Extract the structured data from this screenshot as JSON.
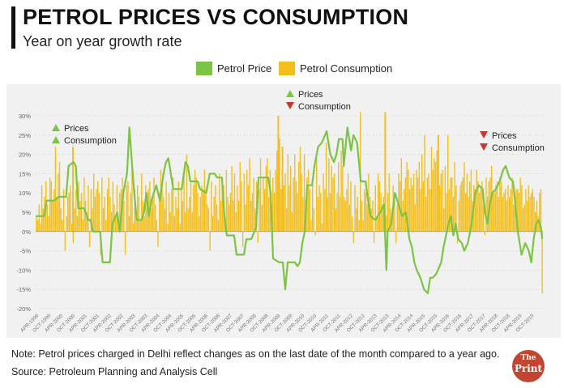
{
  "header": {
    "title": "PETROL PRICES VS CONSUMPTION",
    "subtitle": "Year on year growth rate"
  },
  "footer": {
    "note": "Note: Petrol prices charged in Delhi reflect changes as on the last date of the month compared to a year ago.",
    "source": "Source: Petroleum Planning and Analysis Cell",
    "logo_line1": "The",
    "logo_line2": "Print"
  },
  "chart_data": {
    "type": "bar",
    "title": "PETROL PRICES VS CONSUMPTION",
    "subtitle": "Year on year growth rate",
    "ylim": [
      -20,
      30
    ],
    "yticks": [
      "30%",
      "25%",
      "20%",
      "15%",
      "10%",
      "5%",
      "0%",
      "-5%",
      "-10%",
      "-15%",
      "-20%"
    ],
    "xticks": [
      "APR-1999",
      "OCT-1999",
      "APR-2000",
      "OCT-2000",
      "APR-2001",
      "OCT-2001",
      "APR-2002",
      "OCT-2002",
      "APR-2003",
      "OCT-2003",
      "APR-2004",
      "OCT-2004",
      "APR-2005",
      "OCT-2005",
      "APR-2006",
      "OCT-2006",
      "APR-2007",
      "OCT-2007",
      "APR-2008",
      "OCT-2008",
      "APR-2009",
      "OCT-2009",
      "APR-2010",
      "OCT-2010",
      "APR-2011",
      "OCT-2011",
      "APR-2012",
      "OCT-2012",
      "APR-2013",
      "OCT-2013",
      "APR-2014",
      "OCT-2014",
      "APR-2015",
      "OCT-2015",
      "APR-2016",
      "OCT-2016",
      "APR-2017",
      "OCT-2017",
      "APR-2018",
      "OCT-2018",
      "APR-2019",
      "OCT-2019"
    ],
    "grid": true,
    "legend_position": "top",
    "series": [
      {
        "name": "Petrol Price",
        "type": "line",
        "color": "#7cc444",
        "points": [
          [
            1999.25,
            4
          ],
          [
            1999.6,
            4
          ],
          [
            1999.7,
            8
          ],
          [
            2000.0,
            8
          ],
          [
            2000.2,
            9
          ],
          [
            2000.5,
            9
          ],
          [
            2000.6,
            17
          ],
          [
            2000.8,
            18
          ],
          [
            2000.9,
            17
          ],
          [
            2001.0,
            6
          ],
          [
            2001.25,
            6
          ],
          [
            2001.4,
            3
          ],
          [
            2001.5,
            3
          ],
          [
            2001.6,
            0
          ],
          [
            2001.9,
            0
          ],
          [
            2002.0,
            -8
          ],
          [
            2002.3,
            -8
          ],
          [
            2002.4,
            2
          ],
          [
            2002.6,
            5
          ],
          [
            2002.7,
            0
          ],
          [
            2002.85,
            10
          ],
          [
            2003.0,
            15
          ],
          [
            2003.1,
            27
          ],
          [
            2003.2,
            18
          ],
          [
            2003.3,
            10
          ],
          [
            2003.4,
            3
          ],
          [
            2003.6,
            3
          ],
          [
            2003.7,
            5
          ],
          [
            2003.8,
            10
          ],
          [
            2003.9,
            4
          ],
          [
            2004.0,
            8
          ],
          [
            2004.2,
            12
          ],
          [
            2004.35,
            8
          ],
          [
            2004.5,
            15
          ],
          [
            2004.6,
            18
          ],
          [
            2004.7,
            19
          ],
          [
            2004.8,
            15
          ],
          [
            2004.9,
            11
          ],
          [
            2005.25,
            11
          ],
          [
            2005.4,
            18
          ],
          [
            2005.5,
            17
          ],
          [
            2005.6,
            13
          ],
          [
            2005.9,
            13
          ],
          [
            2006.0,
            11
          ],
          [
            2006.25,
            10
          ],
          [
            2006.4,
            15
          ],
          [
            2006.6,
            15
          ],
          [
            2006.7,
            14
          ],
          [
            2006.9,
            14
          ],
          [
            2007.0,
            4
          ],
          [
            2007.1,
            -1
          ],
          [
            2007.4,
            -1
          ],
          [
            2007.5,
            -6
          ],
          [
            2007.8,
            -6
          ],
          [
            2007.9,
            -2
          ],
          [
            2008.1,
            -2
          ],
          [
            2008.3,
            1
          ],
          [
            2008.4,
            14
          ],
          [
            2008.8,
            14
          ],
          [
            2008.9,
            10
          ],
          [
            2009.0,
            -7
          ],
          [
            2009.25,
            -8
          ],
          [
            2009.4,
            -8
          ],
          [
            2009.5,
            -15
          ],
          [
            2009.6,
            -8
          ],
          [
            2009.9,
            -8
          ],
          [
            2010.0,
            -9
          ],
          [
            2010.1,
            -8
          ],
          [
            2010.2,
            -3
          ],
          [
            2010.3,
            0
          ],
          [
            2010.4,
            12
          ],
          [
            2010.6,
            12
          ],
          [
            2010.7,
            17
          ],
          [
            2010.85,
            22
          ],
          [
            2011.0,
            23
          ],
          [
            2011.2,
            26
          ],
          [
            2011.35,
            20
          ],
          [
            2011.5,
            18
          ],
          [
            2011.6,
            20
          ],
          [
            2011.7,
            24
          ],
          [
            2011.85,
            24
          ],
          [
            2011.9,
            17
          ],
          [
            2012.05,
            27
          ],
          [
            2012.2,
            21
          ],
          [
            2012.3,
            25
          ],
          [
            2012.45,
            23
          ],
          [
            2012.6,
            13
          ],
          [
            2012.8,
            13
          ],
          [
            2012.9,
            8
          ],
          [
            2013.0,
            4
          ],
          [
            2013.2,
            3
          ],
          [
            2013.4,
            5
          ],
          [
            2013.55,
            7
          ],
          [
            2013.65,
            -10
          ],
          [
            2013.7,
            0
          ],
          [
            2013.85,
            2
          ],
          [
            2014.0,
            10
          ],
          [
            2014.1,
            8
          ],
          [
            2014.3,
            4
          ],
          [
            2014.45,
            5
          ],
          [
            2014.6,
            -2
          ],
          [
            2014.7,
            -4
          ],
          [
            2014.8,
            -8
          ],
          [
            2014.9,
            -10
          ],
          [
            2015.05,
            -12
          ],
          [
            2015.2,
            -15
          ],
          [
            2015.35,
            -16
          ],
          [
            2015.45,
            -12
          ],
          [
            2015.55,
            -12
          ],
          [
            2015.7,
            -11
          ],
          [
            2015.9,
            -8
          ],
          [
            2016.0,
            -4
          ],
          [
            2016.1,
            -1
          ],
          [
            2016.2,
            2
          ],
          [
            2016.3,
            4
          ],
          [
            2016.4,
            -1
          ],
          [
            2016.5,
            2
          ],
          [
            2016.6,
            -2
          ],
          [
            2016.75,
            -3
          ],
          [
            2016.85,
            -5
          ],
          [
            2017.0,
            -3
          ],
          [
            2017.15,
            2
          ],
          [
            2017.3,
            10
          ],
          [
            2017.45,
            12
          ],
          [
            2017.6,
            11
          ],
          [
            2017.7,
            5
          ],
          [
            2017.8,
            2
          ],
          [
            2017.9,
            7
          ],
          [
            2018.0,
            10
          ],
          [
            2018.15,
            11
          ],
          [
            2018.3,
            13
          ],
          [
            2018.45,
            16
          ],
          [
            2018.55,
            17
          ],
          [
            2018.7,
            14
          ],
          [
            2018.85,
            13
          ],
          [
            2018.95,
            7
          ],
          [
            2019.05,
            0
          ],
          [
            2019.2,
            -6
          ],
          [
            2019.35,
            -3
          ],
          [
            2019.5,
            -5
          ],
          [
            2019.6,
            -8
          ],
          [
            2019.7,
            -2
          ],
          [
            2019.8,
            2
          ],
          [
            2019.9,
            3
          ],
          [
            2020.0,
            1
          ],
          [
            2020.05,
            -2
          ]
        ]
      },
      {
        "name": "Petrol Consumption",
        "type": "bar",
        "color": "#f4bf1c",
        "values": [
          4,
          3,
          7,
          2,
          12,
          6,
          9,
          13,
          7,
          4,
          14,
          13,
          8,
          11,
          22,
          9,
          15,
          18,
          6,
          3,
          11,
          -5,
          4,
          9,
          10,
          12,
          2,
          -3,
          6,
          11,
          4,
          13,
          8,
          10,
          3,
          14,
          8,
          5,
          12,
          -4,
          11,
          6,
          15,
          9,
          11,
          13,
          10,
          -6,
          14,
          6,
          9,
          3,
          11,
          14,
          9,
          5,
          13,
          7,
          4,
          12,
          2,
          10,
          11,
          14,
          8,
          -6,
          12,
          13,
          4,
          10,
          16,
          2,
          11,
          6,
          12,
          9,
          3,
          15,
          8,
          4,
          12,
          10,
          11,
          13,
          6,
          9,
          14,
          7,
          3,
          -4,
          10,
          16,
          11,
          9,
          6,
          13,
          2,
          10,
          5,
          11,
          14,
          4,
          9,
          6,
          13,
          2,
          11,
          8,
          15,
          5,
          20,
          6,
          9,
          13,
          5,
          12,
          16,
          14,
          10,
          4,
          9,
          12,
          11,
          16,
          11,
          7,
          6,
          -5,
          13,
          4,
          9,
          12,
          7,
          3,
          15,
          8,
          14,
          12,
          2,
          16,
          9,
          7,
          10,
          17,
          8,
          15,
          5,
          12,
          8,
          18,
          13,
          -4,
          15,
          7,
          16,
          12,
          19,
          8,
          10,
          14,
          6,
          13,
          -3,
          11,
          19,
          7,
          14,
          11,
          17,
          19,
          9,
          16,
          7,
          14,
          10,
          16,
          21,
          12,
          24,
          11,
          9,
          12,
          15,
          6,
          20,
          12,
          17,
          5,
          14,
          20,
          13,
          10,
          18,
          22,
          15,
          9,
          20,
          8,
          14,
          16,
          11,
          3,
          13,
          6,
          -1,
          19,
          9,
          12,
          10,
          2,
          15,
          11,
          23,
          9,
          19,
          10,
          17,
          14,
          15,
          6,
          10,
          18,
          9,
          21,
          17,
          9,
          8,
          11,
          15,
          7,
          13,
          4,
          -3,
          12,
          6,
          9,
          3,
          31,
          8,
          3,
          11,
          10,
          7,
          15,
          9,
          6,
          8,
          -3,
          12,
          4,
          15,
          13,
          10,
          7,
          9,
          11,
          4,
          10,
          15,
          6,
          4,
          12,
          9,
          -3,
          7,
          15,
          13,
          19,
          8,
          11,
          14,
          18,
          16,
          11,
          14,
          12,
          15,
          7,
          16,
          14,
          18,
          11,
          20,
          13,
          25,
          9,
          14,
          15,
          11,
          22,
          16,
          19,
          18,
          21,
          7,
          12,
          15,
          16,
          6,
          17,
          10,
          25,
          11,
          14,
          14,
          9,
          18,
          12,
          -3,
          8,
          12,
          13,
          14,
          18,
          10,
          15,
          9,
          13,
          16,
          8,
          12,
          11,
          16,
          13,
          10,
          11,
          13,
          7,
          -1,
          14,
          9,
          13,
          14,
          17,
          10,
          10,
          12,
          13,
          9,
          14,
          13,
          9,
          10,
          11,
          8,
          12,
          9,
          11,
          14,
          7,
          9,
          11,
          11,
          10,
          14,
          12,
          6,
          7,
          11,
          8,
          12,
          9,
          10,
          11,
          9,
          5,
          8,
          4,
          10,
          11,
          -16
        ]
      }
    ],
    "bar_overrides": [
      [
        2000.75,
        22
      ],
      [
        2009.18,
        30
      ],
      [
        2009.35,
        22
      ],
      [
        2013.57,
        31
      ],
      [
        2015.75,
        25
      ]
    ],
    "annotations": [
      {
        "items": [
          {
            "symbol": "up",
            "label": "Prices"
          },
          {
            "symbol": "up",
            "label": "Consumption"
          }
        ]
      },
      {
        "items": [
          {
            "symbol": "up",
            "label": "Prices"
          },
          {
            "symbol": "down",
            "label": "Consumption"
          }
        ]
      },
      {
        "items": [
          {
            "symbol": "down",
            "label": "Prices"
          },
          {
            "symbol": "down",
            "label": "Consumption"
          }
        ]
      }
    ],
    "colors": {
      "price": "#7cc444",
      "consumption": "#f4bf1c",
      "up": "#7cc444",
      "down": "#c8382c"
    }
  }
}
